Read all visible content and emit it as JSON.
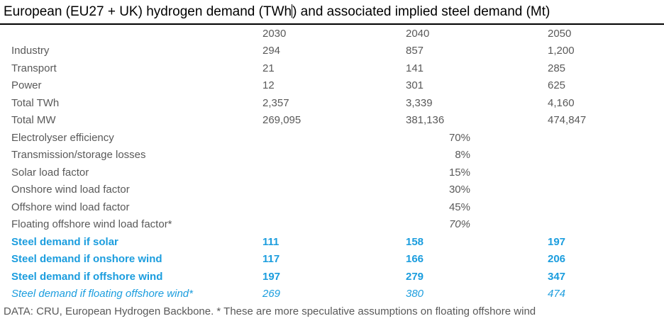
{
  "header": {
    "title_part1": "European (EU27 + UK) hydrogen demand (TWh",
    "title_part2": ") and associated implied steel demand (Mt)"
  },
  "chart_data": {
    "type": "table",
    "title": "European (EU27 + UK) hydrogen demand (TWh) and associated implied steel demand (Mt)",
    "columns": [
      "2030",
      "2040",
      "2050"
    ],
    "rows": [
      {
        "label": "Industry",
        "values": [
          "294",
          "857",
          "1,200"
        ],
        "style": "data"
      },
      {
        "label": "Transport",
        "values": [
          "21",
          "141",
          "285"
        ],
        "style": "data"
      },
      {
        "label": "Power",
        "values": [
          "12",
          "301",
          "625"
        ],
        "style": "data"
      },
      {
        "label": "Total TWh",
        "values": [
          "2,357",
          "3,339",
          "4,160"
        ],
        "style": "data"
      },
      {
        "label": "Total MW",
        "values": [
          "269,095",
          "381,136",
          "474,847"
        ],
        "style": "data"
      },
      {
        "label": "Electrolyser efficiency",
        "values": [
          "",
          "70%",
          ""
        ],
        "style": "assumption"
      },
      {
        "label": "Transmission/storage losses",
        "values": [
          "",
          "8%",
          ""
        ],
        "style": "assumption"
      },
      {
        "label": "Solar load factor",
        "values": [
          "",
          "15%",
          ""
        ],
        "style": "assumption"
      },
      {
        "label": "Onshore wind load factor",
        "values": [
          "",
          "30%",
          ""
        ],
        "style": "assumption"
      },
      {
        "label": "Offshore wind load factor",
        "values": [
          "",
          "45%",
          ""
        ],
        "style": "assumption"
      },
      {
        "label": "Floating offshore wind load factor*",
        "values": [
          "",
          "70%",
          ""
        ],
        "style": "assumption-italic"
      },
      {
        "label": "Steel demand if solar",
        "values": [
          "111",
          "158",
          "197"
        ],
        "style": "steel"
      },
      {
        "label": "Steel demand if onshore wind",
        "values": [
          "117",
          "166",
          "206"
        ],
        "style": "steel"
      },
      {
        "label": "Steel demand if offshore wind",
        "values": [
          "197",
          "279",
          "347"
        ],
        "style": "steel"
      },
      {
        "label": "Steel demand if floating offshore wind*",
        "values": [
          "269",
          "380",
          "474"
        ],
        "style": "steel-italic"
      }
    ],
    "source_note": "DATA: CRU, European Hydrogen Backbone. * These are more speculative assumptions on floating offshore wind"
  },
  "colors": {
    "accent_blue": "#1b9dde",
    "body_gray": "#595959",
    "title_black": "#000000"
  }
}
